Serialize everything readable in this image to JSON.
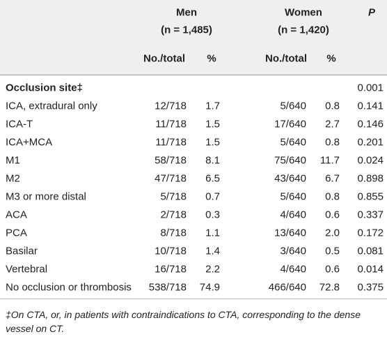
{
  "table": {
    "header": {
      "men": "Men",
      "men_n": "(n = 1,485)",
      "women": "Women",
      "women_n": "(n = 1,420)",
      "p": "P",
      "columns": [
        "No./total",
        "%",
        "No./total",
        "%"
      ]
    },
    "section": {
      "label": "Occlusion site‡",
      "p": "0.001"
    },
    "rows": [
      [
        "ICA, extradural only",
        "12/718",
        "1.7",
        "5/640",
        "0.8",
        "0.141"
      ],
      [
        "ICA-T",
        "11/718",
        "1.5",
        "17/640",
        "2.7",
        "0.146"
      ],
      [
        "ICA+MCA",
        "11/718",
        "1.5",
        "5/640",
        "0.8",
        "0.201"
      ],
      [
        "M1",
        "58/718",
        "8.1",
        "75/640",
        "11.7",
        "0.024"
      ],
      [
        "M2",
        "47/718",
        "6.5",
        "43/640",
        "6.7",
        "0.898"
      ],
      [
        "M3 or more distal",
        "5/718",
        "0.7",
        "5/640",
        "0.8",
        "0.855"
      ],
      [
        "ACA",
        "2/718",
        "0.3",
        "4/640",
        "0.6",
        "0.337"
      ],
      [
        "PCA",
        "8/718",
        "1.1",
        "13/640",
        "2.0",
        "0.172"
      ],
      [
        "Basilar",
        "10/718",
        "1.4",
        "3/640",
        "0.5",
        "0.081"
      ],
      [
        "Vertebral",
        "16/718",
        "2.2",
        "4/640",
        "0.6",
        "0.014"
      ],
      [
        "No occlusion or thrombosis",
        "538/718",
        "74.9",
        "466/640",
        "72.8",
        "0.375"
      ]
    ],
    "footnote": "‡On CTA, or, in patients with contraindications to CTA, corresponding to the dense vessel on CT."
  }
}
